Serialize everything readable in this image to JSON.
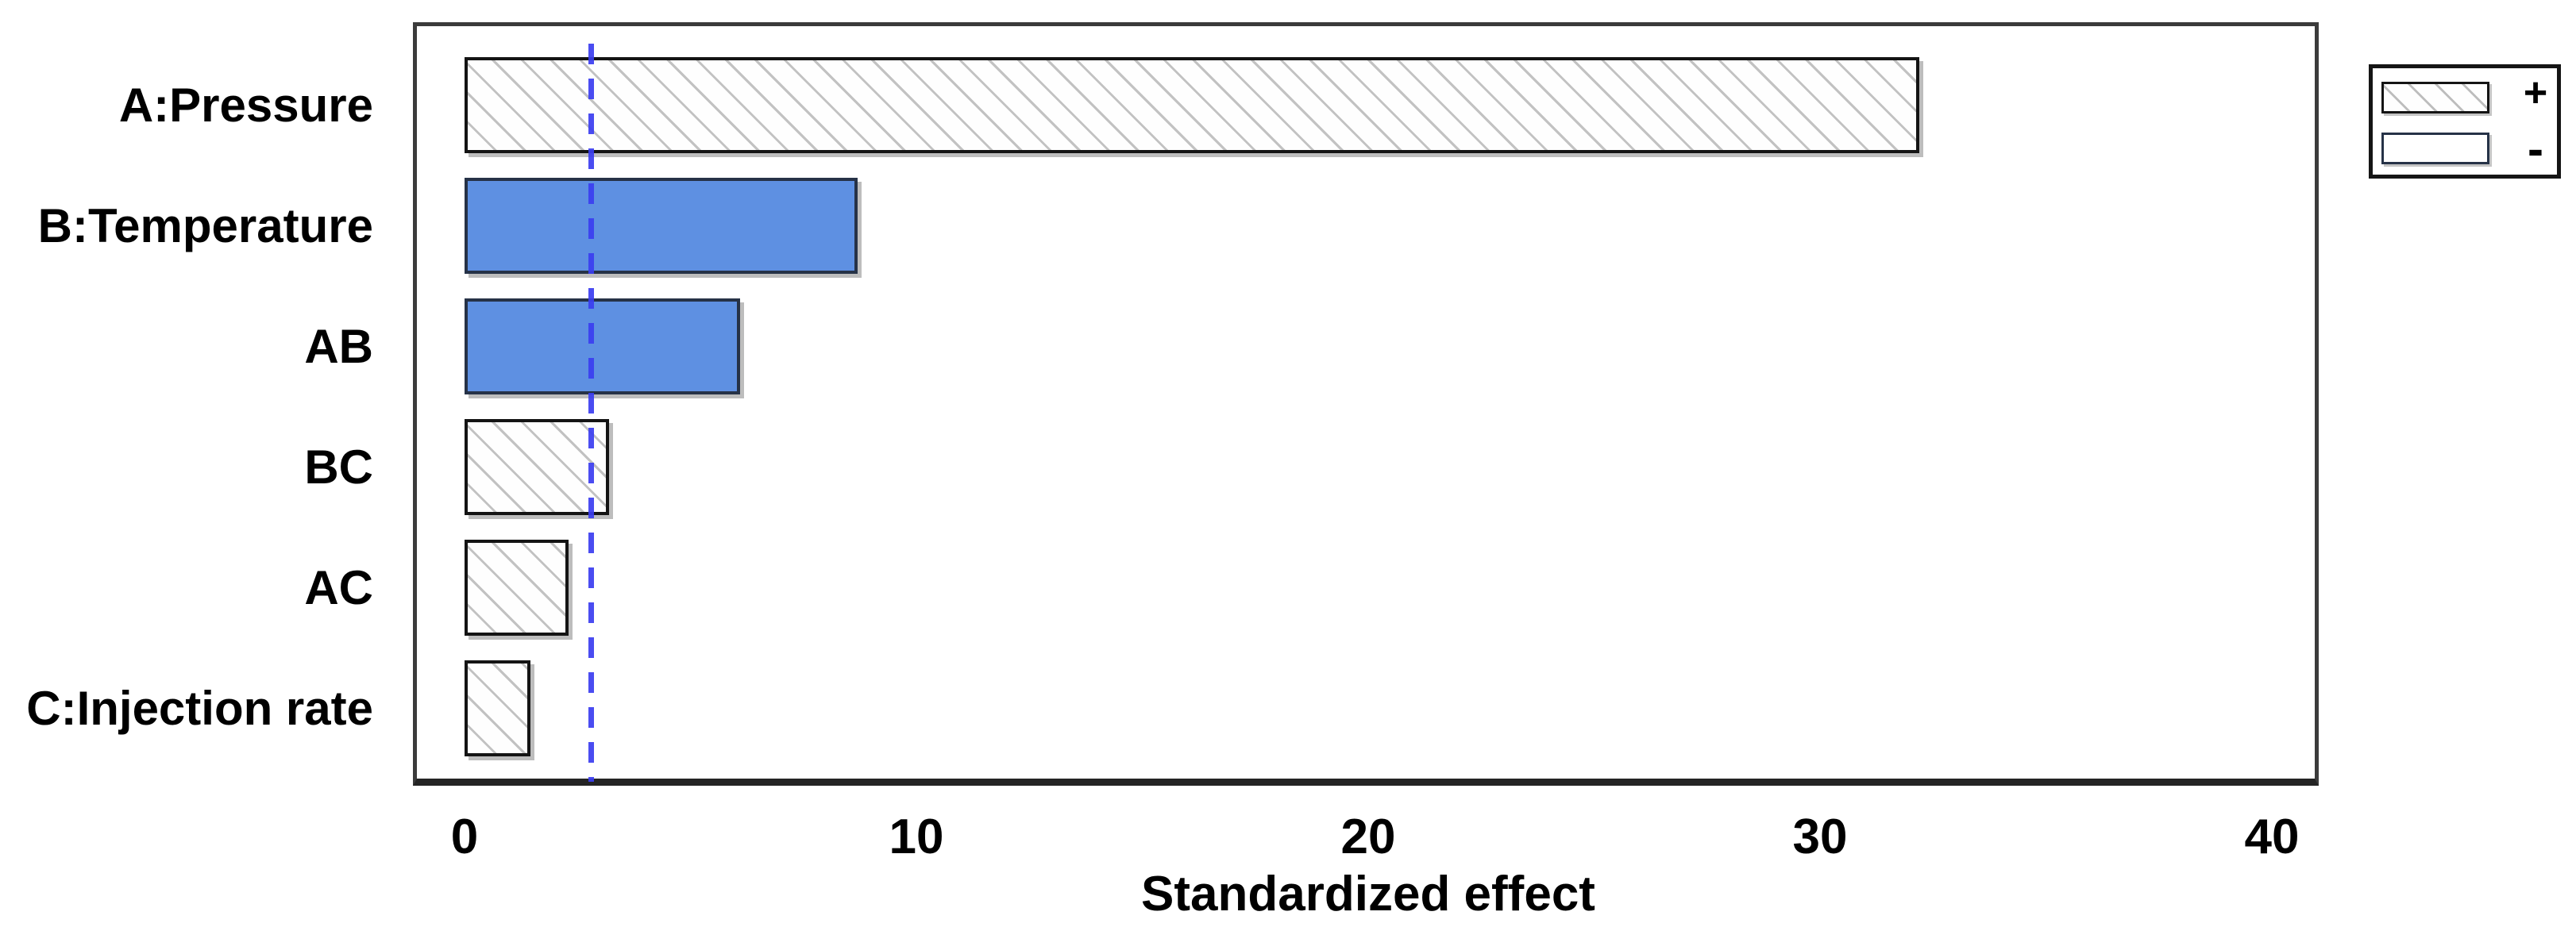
{
  "chart_data": {
    "type": "bar",
    "orientation": "horizontal",
    "title": "",
    "xlabel": "Standardized effect",
    "categories": [
      "A:Pressure",
      "B:Temperature",
      "AB",
      "BC",
      "AC",
      "C:Injection rate"
    ],
    "values": [
      32.2,
      8.7,
      6.1,
      3.2,
      2.3,
      1.45
    ],
    "signs": [
      "+",
      "-",
      "-",
      "+",
      "+",
      "+"
    ],
    "xticks": [
      0,
      10,
      20,
      30,
      40
    ],
    "xlim": [
      0,
      40
    ],
    "reference_line": 2.8,
    "grid": false,
    "legend": {
      "position": "outside-top-right",
      "positive_label": "+",
      "negative_label": "-"
    },
    "colors": {
      "negative_fill": "#5e90e2",
      "positive_fill": "#ffffff",
      "hatch_line": "#c2c2c2",
      "reference_line": "#3a3df0",
      "bar_border": "#141414"
    }
  }
}
